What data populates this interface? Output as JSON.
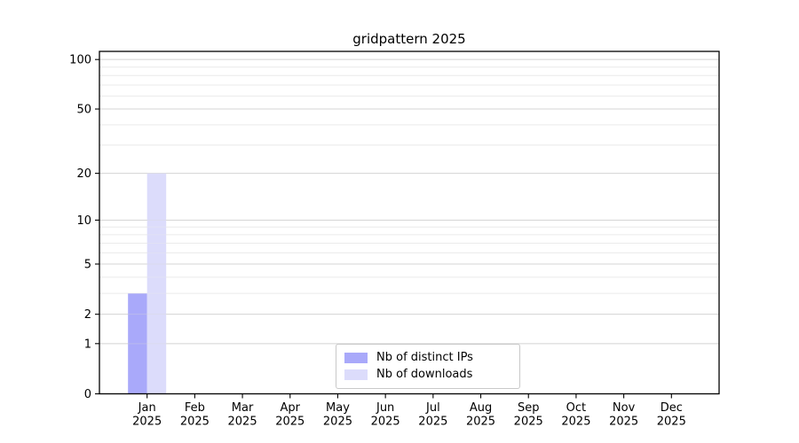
{
  "chart_data": {
    "type": "bar",
    "title": "gridpattern 2025",
    "months": [
      "Jan",
      "Feb",
      "Mar",
      "Apr",
      "May",
      "Jun",
      "Jul",
      "Aug",
      "Sep",
      "Oct",
      "Nov",
      "Dec"
    ],
    "year": "2025",
    "series": [
      {
        "name": "Nb of distinct IPs",
        "color": "#a9a9fa",
        "values": [
          3,
          0,
          0,
          0,
          0,
          0,
          0,
          0,
          0,
          0,
          0,
          0
        ]
      },
      {
        "name": "Nb of downloads",
        "color": "#dcdcfb",
        "values": [
          20,
          0,
          0,
          0,
          0,
          0,
          0,
          0,
          0,
          0,
          0,
          0
        ]
      }
    ],
    "y_axis": {
      "scale": "log1p",
      "major_ticks": [
        0,
        1,
        2,
        5,
        10,
        20,
        50,
        100
      ],
      "minor_ticks": [
        3,
        4,
        6,
        7,
        8,
        9,
        30,
        40,
        60,
        70,
        80,
        90
      ],
      "ylim": [
        0,
        112
      ]
    },
    "grid": {
      "major_color": "#d6d6d6",
      "minor_color": "#ececec"
    },
    "legend": {
      "position": "lower-center"
    }
  }
}
